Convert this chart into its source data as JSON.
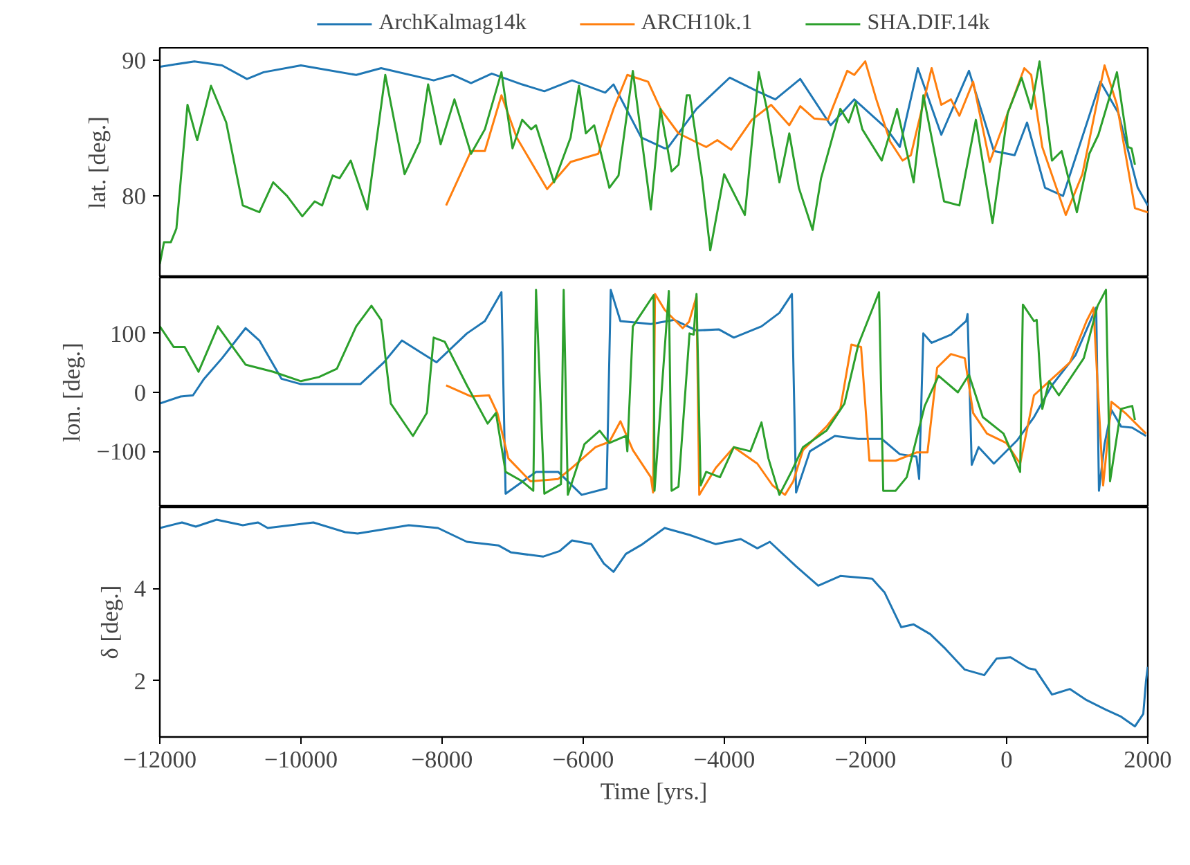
{
  "chart_data": [
    {
      "type": "line",
      "ylabel": "lat. [deg.]",
      "xlim": [
        -12000,
        2000
      ],
      "ylim": [
        74,
        90.9
      ],
      "yticks": [
        80,
        90
      ],
      "tick_labels": "y",
      "legend": "top",
      "series": [
        {
          "name": "ArchKalmag14k",
          "color": "#1f77b4",
          "x": [
            -12000,
            -11510,
            -11118,
            -10765,
            -10530,
            -10001,
            -9217,
            -8864,
            -8119,
            -7845,
            -7590,
            -7296,
            -6865,
            -6551,
            -6159,
            -5689,
            -5571,
            -5179,
            -4846,
            -4807,
            -4395,
            -3925,
            -3533,
            -3278,
            -2925,
            -2494,
            -2160,
            -1710,
            -1514,
            -1259,
            -926,
            -534,
            -181,
            113,
            289,
            544,
            799,
            1328,
            1583,
            1857,
            2000
          ],
          "values": [
            89.5,
            89.9,
            89.6,
            88.6,
            89.1,
            89.6,
            88.9,
            89.4,
            88.5,
            88.9,
            88.3,
            89.0,
            88.2,
            87.7,
            88.5,
            87.6,
            88.2,
            84.3,
            83.5,
            83.5,
            86.4,
            88.7,
            87.7,
            87.1,
            88.6,
            85.2,
            87.1,
            85.0,
            83.6,
            89.4,
            84.5,
            89.2,
            83.3,
            83.0,
            85.4,
            80.6,
            80.0,
            88.4,
            86.1,
            80.6,
            79.3
          ]
        },
        {
          "name": "ARCH10k.1",
          "color": "#ff7f0e",
          "x": [
            -7943,
            -7590,
            -7394,
            -7159,
            -6943,
            -6512,
            -6179,
            -5787,
            -5571,
            -5375,
            -5081,
            -4905,
            -4650,
            -4258,
            -4100,
            -3905,
            -3611,
            -3337,
            -3080,
            -2925,
            -2729,
            -2533,
            -2259,
            -2160,
            -2004,
            -1847,
            -1651,
            -1475,
            -1357,
            -1063,
            -926,
            -789,
            -670,
            -475,
            -240,
            250,
            348,
            505,
            838,
            1073,
            1387,
            1563,
            1818,
            2000
          ],
          "values": [
            79.3,
            83.3,
            83.3,
            87.4,
            84.3,
            80.5,
            82.5,
            83.1,
            86.4,
            88.9,
            88.4,
            86.4,
            84.6,
            83.6,
            84.1,
            83.4,
            85.6,
            86.7,
            85.2,
            86.6,
            85.7,
            85.6,
            89.2,
            88.9,
            89.9,
            87.1,
            84.0,
            82.6,
            83.0,
            89.4,
            86.7,
            87.1,
            85.9,
            88.4,
            82.5,
            89.4,
            88.9,
            83.6,
            78.6,
            81.6,
            89.6,
            86.7,
            79.1,
            78.8
          ]
        },
        {
          "name": "SHA.DIF.14k",
          "color": "#2ca02c",
          "x": [
            -12000,
            -11941,
            -11843,
            -11765,
            -11608,
            -11470,
            -11275,
            -11059,
            -10824,
            -10589,
            -10393,
            -10197,
            -9981,
            -9805,
            -9700,
            -9550,
            -9453,
            -9295,
            -9060,
            -8805,
            -8531,
            -8315,
            -8198,
            -8021,
            -7825,
            -7590,
            -7394,
            -7159,
            -7002,
            -6865,
            -6737,
            -6670,
            -6414,
            -6179,
            -6061,
            -5963,
            -5845,
            -5630,
            -5500,
            -5297,
            -5042,
            -4905,
            -4748,
            -4650,
            -4533,
            -4490,
            -4317,
            -4200,
            -4003,
            -3710,
            -3513,
            -3397,
            -3220,
            -3080,
            -2945,
            -2750,
            -2630,
            -2357,
            -2240,
            -2140,
            -2045,
            -1770,
            -1553,
            -1318,
            -1180,
            -887,
            -670,
            -436,
            -200,
            15,
            211,
            348,
            466,
            642,
            780,
            995,
            1171,
            1300,
            1563,
            1720,
            1770,
            1818
          ],
          "values": [
            75.0,
            76.6,
            76.6,
            77.6,
            86.7,
            84.1,
            88.1,
            85.4,
            79.3,
            78.8,
            81.0,
            80.0,
            78.5,
            79.6,
            79.3,
            81.5,
            81.3,
            82.6,
            79.0,
            88.9,
            81.6,
            84.0,
            88.2,
            83.8,
            87.1,
            83.1,
            84.9,
            89.1,
            83.5,
            85.6,
            84.9,
            85.2,
            81.0,
            84.3,
            88.1,
            84.6,
            85.2,
            80.6,
            81.5,
            89.2,
            79.0,
            86.4,
            81.8,
            82.3,
            87.4,
            87.4,
            81.3,
            76.0,
            81.6,
            78.6,
            89.1,
            86.4,
            81.0,
            84.6,
            80.6,
            77.5,
            81.3,
            86.4,
            85.4,
            86.9,
            84.9,
            82.6,
            86.4,
            81.0,
            87.4,
            79.6,
            79.3,
            85.6,
            78.0,
            86.1,
            88.7,
            86.4,
            89.9,
            82.6,
            83.3,
            78.8,
            83.1,
            84.5,
            89.1,
            83.6,
            83.5,
            82.3
          ]
        }
      ]
    },
    {
      "type": "line",
      "ylabel": "lon. [deg.]",
      "xlim": [
        -12000,
        2000
      ],
      "ylim": [
        -195,
        195
      ],
      "yticks": [
        -100,
        0,
        100
      ],
      "tick_labels": "y",
      "series": [
        {
          "color": "#1f77b4",
          "x": [
            -12000,
            -11706,
            -11530,
            -11373,
            -11118,
            -10785,
            -10589,
            -10275,
            -10001,
            -9158,
            -8825,
            -8570,
            -8080,
            -7649,
            -7394,
            -7159,
            -7100,
            -6669,
            -6355,
            -6022,
            -5669,
            -5610,
            -5473,
            -5042,
            -4709,
            -4395,
            -4080,
            -3866,
            -3474,
            -3220,
            -3043,
            -2984,
            -2788,
            -2435,
            -2102,
            -1770,
            -1514,
            -1279,
            -1240,
            -1181,
            -1063,
            -789,
            -573,
            -554,
            -495,
            -397,
            -181,
            152,
            387,
            642,
            975,
            1269,
            1308,
            1387,
            1485,
            1622,
            1779,
            1975
          ],
          "values": [
            -19,
            -7,
            -5,
            23,
            58,
            109,
            88,
            23,
            14,
            14,
            51,
            88,
            51,
            100,
            121,
            170,
            -172,
            -135,
            -135,
            -174,
            -163,
            174,
            121,
            116,
            123,
            105,
            107,
            93,
            112,
            135,
            167,
            -170,
            -100,
            -74,
            -79,
            -79,
            -105,
            -109,
            -147,
            100,
            84,
            98,
            121,
            133,
            -123,
            -93,
            -121,
            -81,
            -42,
            12,
            63,
            144,
            -167,
            -88,
            -30,
            -58,
            -60,
            -74
          ]
        },
        {
          "color": "#ff7f0e",
          "x": [
            -7943,
            -7590,
            -7335,
            -7217,
            -7061,
            -6747,
            -6355,
            -6159,
            -5826,
            -5630,
            -5473,
            -5297,
            -5042,
            -5010,
            -4983,
            -4846,
            -4591,
            -4500,
            -4395,
            -4356,
            -4121,
            -3866,
            -3533,
            -3317,
            -3141,
            -3023,
            -2886,
            -2553,
            -2357,
            -2200,
            -2063,
            -1945,
            -1573,
            -1279,
            -1122,
            -985,
            -789,
            -593,
            -475,
            -279,
            -5,
            191,
            387,
            642,
            897,
            1132,
            1230,
            1367,
            1485,
            1681,
            1975
          ],
          "values": [
            12,
            -7,
            -5,
            -35,
            -112,
            -151,
            -147,
            -128,
            -93,
            -84,
            -49,
            -98,
            -144,
            -170,
            167,
            140,
            109,
            120,
            163,
            -174,
            -128,
            -93,
            -121,
            -158,
            -174,
            -151,
            -98,
            -58,
            -28,
            81,
            77,
            -116,
            -116,
            -102,
            -102,
            42,
            65,
            58,
            -35,
            -70,
            -86,
            -121,
            -5,
            23,
            51,
            121,
            144,
            -158,
            -16,
            -35,
            -70
          ]
        },
        {
          "color": "#2ca02c",
          "x": [
            -12000,
            -11804,
            -11647,
            -11451,
            -11177,
            -10785,
            -10393,
            -10001,
            -9746,
            -9491,
            -9217,
            -9001,
            -8864,
            -8727,
            -8413,
            -8217,
            -8119,
            -7963,
            -7649,
            -7355,
            -7237,
            -7100,
            -6865,
            -6708,
            -6669,
            -6551,
            -6316,
            -6277,
            -6218,
            -5983,
            -5767,
            -5630,
            -5395,
            -5375,
            -5297,
            -5003,
            -4990,
            -4787,
            -4748,
            -4650,
            -4494,
            -4435,
            -4395,
            -4336,
            -4258,
            -4062,
            -3866,
            -3631,
            -3474,
            -3376,
            -3220,
            -3043,
            -2886,
            -2553,
            -2298,
            -2102,
            -1808,
            -1749,
            -1573,
            -1416,
            -1161,
            -965,
            -691,
            -534,
            -338,
            -44,
            191,
            230,
            387,
            426,
            505,
            603,
            740,
            1093,
            1289,
            1407,
            1465,
            1563,
            1622,
            1779,
            1818
          ],
          "values": [
            112,
            77,
            77,
            35,
            112,
            47,
            35,
            19,
            26,
            40,
            112,
            147,
            123,
            -19,
            -74,
            -35,
            93,
            86,
            12,
            -53,
            -35,
            -135,
            -151,
            -167,
            174,
            -172,
            -156,
            174,
            -174,
            -88,
            -65,
            -86,
            -74,
            -100,
            112,
            165,
            -167,
            172,
            -167,
            -160,
            100,
            98,
            167,
            -158,
            -135,
            -144,
            -93,
            -100,
            -51,
            -112,
            -174,
            -133,
            -93,
            -65,
            -19,
            81,
            170,
            -167,
            -167,
            -144,
            -23,
            28,
            0,
            30,
            -42,
            -70,
            -135,
            149,
            121,
            123,
            -28,
            19,
            -5,
            58,
            147,
            174,
            -151,
            -74,
            -28,
            -23,
            -47
          ]
        }
      ]
    },
    {
      "type": "line",
      "xlabel": "Time [yrs.]",
      "ylabel": "δ [deg.]",
      "xlim": [
        -12000,
        2000
      ],
      "xticks": [
        -12000,
        -10000,
        -8000,
        -6000,
        -4000,
        -2000,
        0,
        2000
      ],
      "ylim": [
        0.78,
        5.76
      ],
      "yticks": [
        2,
        4
      ],
      "series": [
        {
          "color": "#1f77b4",
          "x": [
            -12000,
            -11686,
            -11490,
            -11196,
            -10824,
            -10608,
            -10471,
            -9824,
            -9374,
            -9197,
            -8472,
            -8060,
            -7648,
            -7198,
            -7021,
            -6570,
            -6335,
            -6159,
            -5885,
            -5708,
            -5571,
            -5395,
            -5160,
            -4846,
            -4494,
            -4121,
            -3768,
            -3533,
            -3356,
            -2984,
            -2670,
            -2357,
            -1906,
            -1729,
            -1494,
            -1318,
            -1083,
            -867,
            -593,
            -318,
            -142,
            54,
            309,
            407,
            642,
            897,
            1132,
            1407,
            1622,
            1818,
            1936,
            1975,
            2000
          ],
          "values": [
            5.31,
            5.43,
            5.34,
            5.49,
            5.37,
            5.43,
            5.31,
            5.43,
            5.22,
            5.19,
            5.37,
            5.31,
            5.01,
            4.93,
            4.78,
            4.69,
            4.81,
            5.04,
            4.96,
            4.54,
            4.36,
            4.75,
            4.96,
            5.31,
            5.16,
            4.96,
            5.07,
            4.87,
            5.01,
            4.48,
            4.06,
            4.27,
            4.21,
            3.91,
            3.16,
            3.22,
            3.01,
            2.69,
            2.24,
            2.12,
            2.48,
            2.51,
            2.27,
            2.24,
            1.7,
            1.82,
            1.58,
            1.37,
            1.22,
            1.01,
            1.28,
            2.0,
            2.3
          ]
        }
      ]
    }
  ]
}
